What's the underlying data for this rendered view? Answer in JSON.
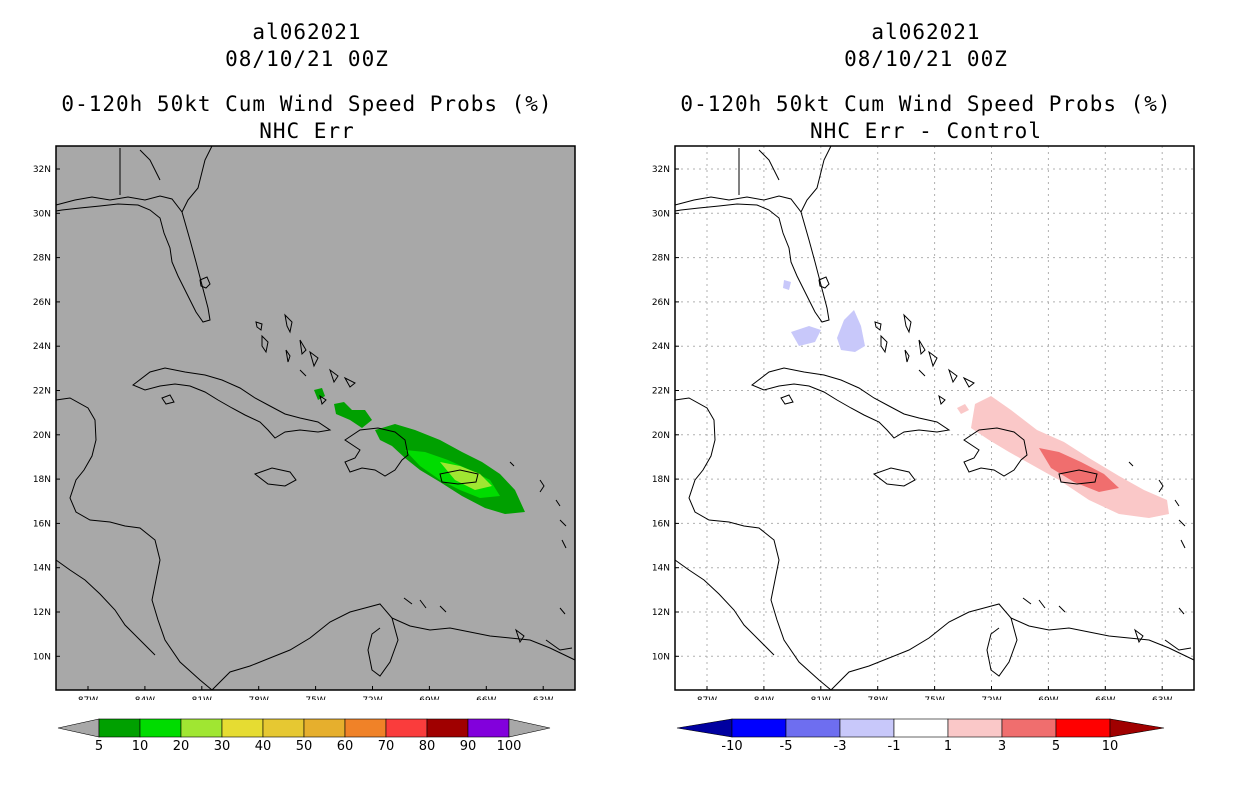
{
  "left": {
    "title1": "al062021",
    "title2": "08/10/21 00Z",
    "title3": "0-120h 50kt Cum Wind Speed Probs (%)",
    "title4": "NHC Err",
    "bg_color": "#a8a8a8",
    "lat_labels": [
      "32N",
      "30N",
      "28N",
      "26N",
      "24N",
      "22N",
      "20N",
      "18N",
      "16N",
      "14N",
      "12N",
      "10N"
    ],
    "lon_labels": [
      "87W",
      "84W",
      "81W",
      "78W",
      "75W",
      "72W",
      "69W",
      "66W",
      "63W"
    ],
    "colorbar": {
      "labels": [
        "5",
        "10",
        "20",
        "30",
        "40",
        "50",
        "60",
        "70",
        "80",
        "90",
        "100"
      ],
      "colors": [
        "#00a000",
        "#00dc00",
        "#a0e632",
        "#e6dc32",
        "#e6c832",
        "#e6af2d",
        "#f08228",
        "#fa3c3c",
        "#a00000",
        "#8200dc"
      ],
      "end_color": "#a8a8a8"
    }
  },
  "right": {
    "title1": "al062021",
    "title2": "08/10/21 00Z",
    "title3": "0-120h 50kt Cum Wind Speed Probs (%)",
    "title4": "NHC Err - Control",
    "bg_color": "#ffffff",
    "lat_labels": [
      "32N",
      "30N",
      "28N",
      "26N",
      "24N",
      "22N",
      "20N",
      "18N",
      "16N",
      "14N",
      "12N",
      "10N"
    ],
    "lon_labels": [
      "87W",
      "84W",
      "81W",
      "78W",
      "75W",
      "72W",
      "69W",
      "66W",
      "63W"
    ],
    "colorbar": {
      "labels": [
        "-10",
        "-5",
        "-3",
        "-1",
        "1",
        "3",
        "5",
        "10"
      ],
      "colors": [
        "#0000ff",
        "#6e6ef0",
        "#c8c8fa",
        "#ffffff",
        "#fac8c8",
        "#f06e6e",
        "#ff0000"
      ],
      "left_end_color": "#0000a0",
      "right_end_color": "#a00000"
    }
  }
}
